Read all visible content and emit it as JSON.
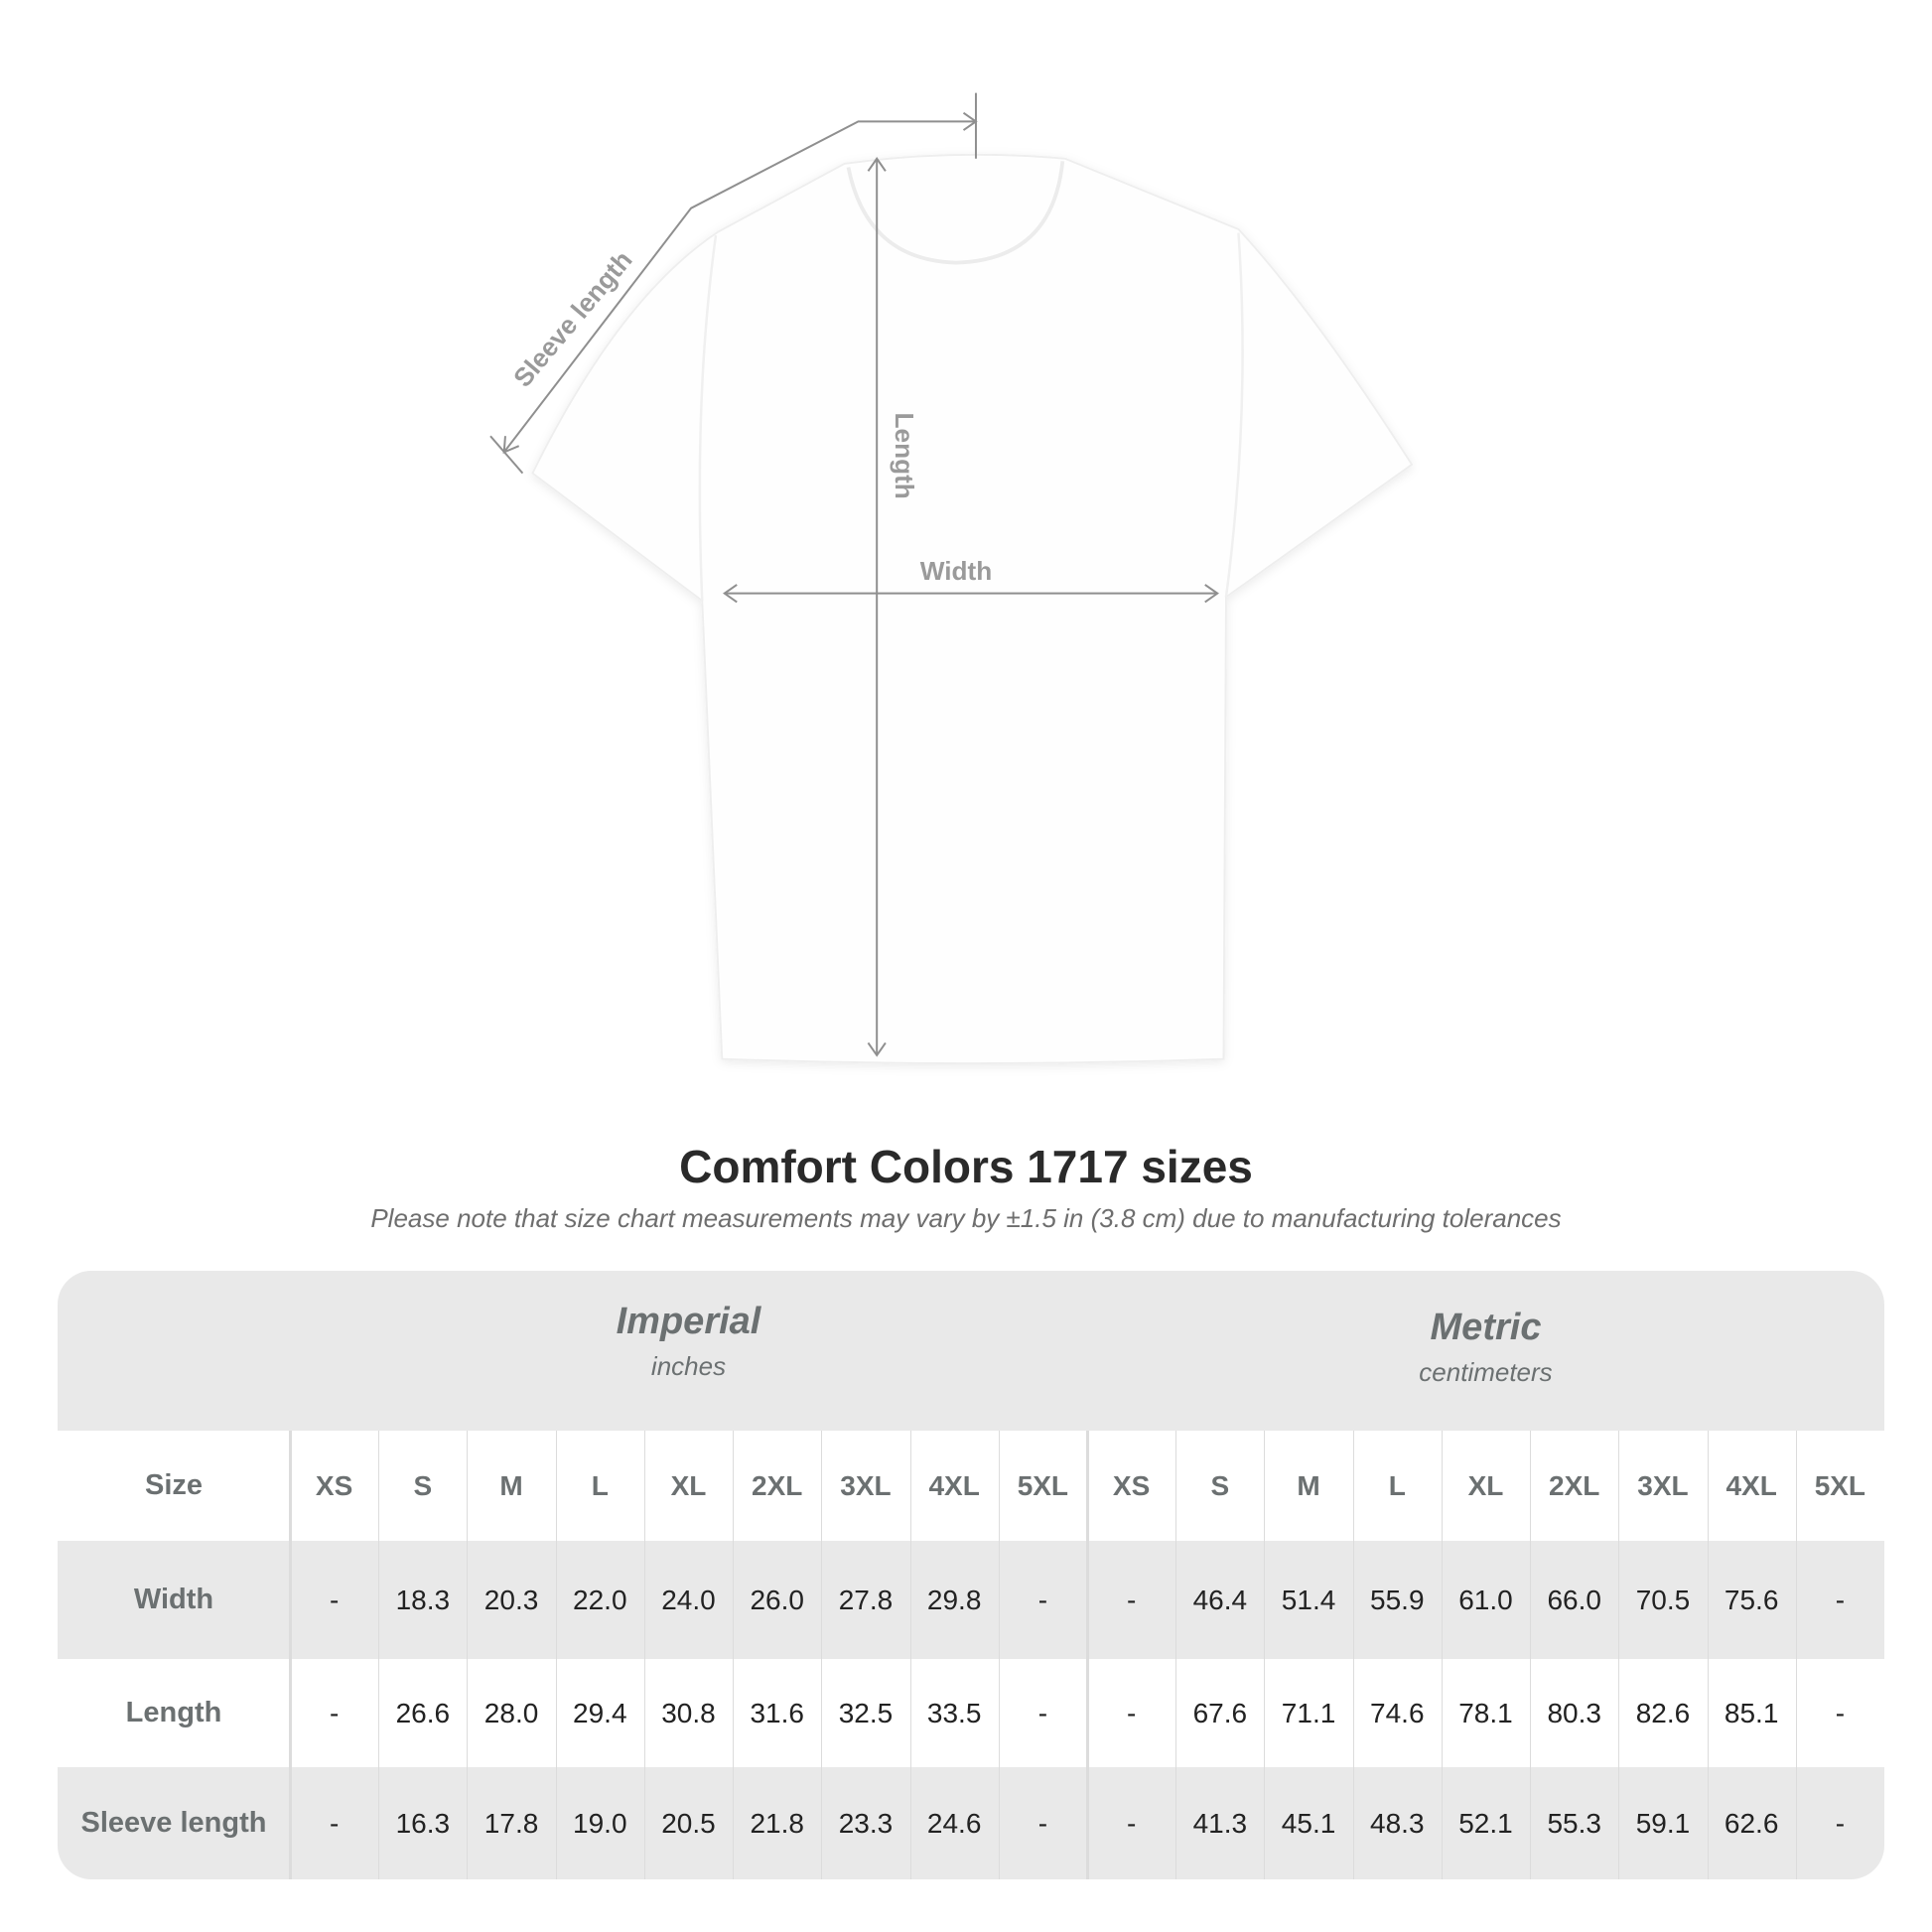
{
  "diagram": {
    "labels": {
      "sleeve": "Sleeve length",
      "length": "Length",
      "width": "Width"
    },
    "colors": {
      "shirt": "#ffffff",
      "measure_line": "#8f8f8f",
      "label": "#9a9a9a"
    }
  },
  "title": "Comfort Colors 1717 sizes",
  "note": "Please note that size chart measurements may vary by ±1.5 in (3.8 cm) due to manufacturing tolerances",
  "table": {
    "systems": [
      {
        "name": "Imperial",
        "unit": "inches"
      },
      {
        "name": "Metric",
        "unit": "centimeters"
      }
    ],
    "size_label": "Size",
    "sizes": [
      "XS",
      "S",
      "M",
      "L",
      "XL",
      "2XL",
      "3XL",
      "4XL",
      "5XL"
    ],
    "rows": [
      {
        "label": "Width",
        "imperial": [
          "-",
          "18.3",
          "20.3",
          "22.0",
          "24.0",
          "26.0",
          "27.8",
          "29.8",
          "-"
        ],
        "metric": [
          "-",
          "46.4",
          "51.4",
          "55.9",
          "61.0",
          "66.0",
          "70.5",
          "75.6",
          "-"
        ]
      },
      {
        "label": "Length",
        "imperial": [
          "-",
          "26.6",
          "28.0",
          "29.4",
          "30.8",
          "31.6",
          "32.5",
          "33.5",
          "-"
        ],
        "metric": [
          "-",
          "67.6",
          "71.1",
          "74.6",
          "78.1",
          "80.3",
          "82.6",
          "85.1",
          "-"
        ]
      },
      {
        "label": "Sleeve length",
        "imperial": [
          "-",
          "16.3",
          "17.8",
          "19.0",
          "20.5",
          "21.8",
          "23.3",
          "24.6",
          "-"
        ],
        "metric": [
          "-",
          "41.3",
          "45.1",
          "48.3",
          "52.1",
          "55.3",
          "59.1",
          "62.6",
          "-"
        ]
      }
    ],
    "colors": {
      "band": "#e9e9e9",
      "header_text": "#6b7071",
      "value_text": "#222222"
    }
  }
}
